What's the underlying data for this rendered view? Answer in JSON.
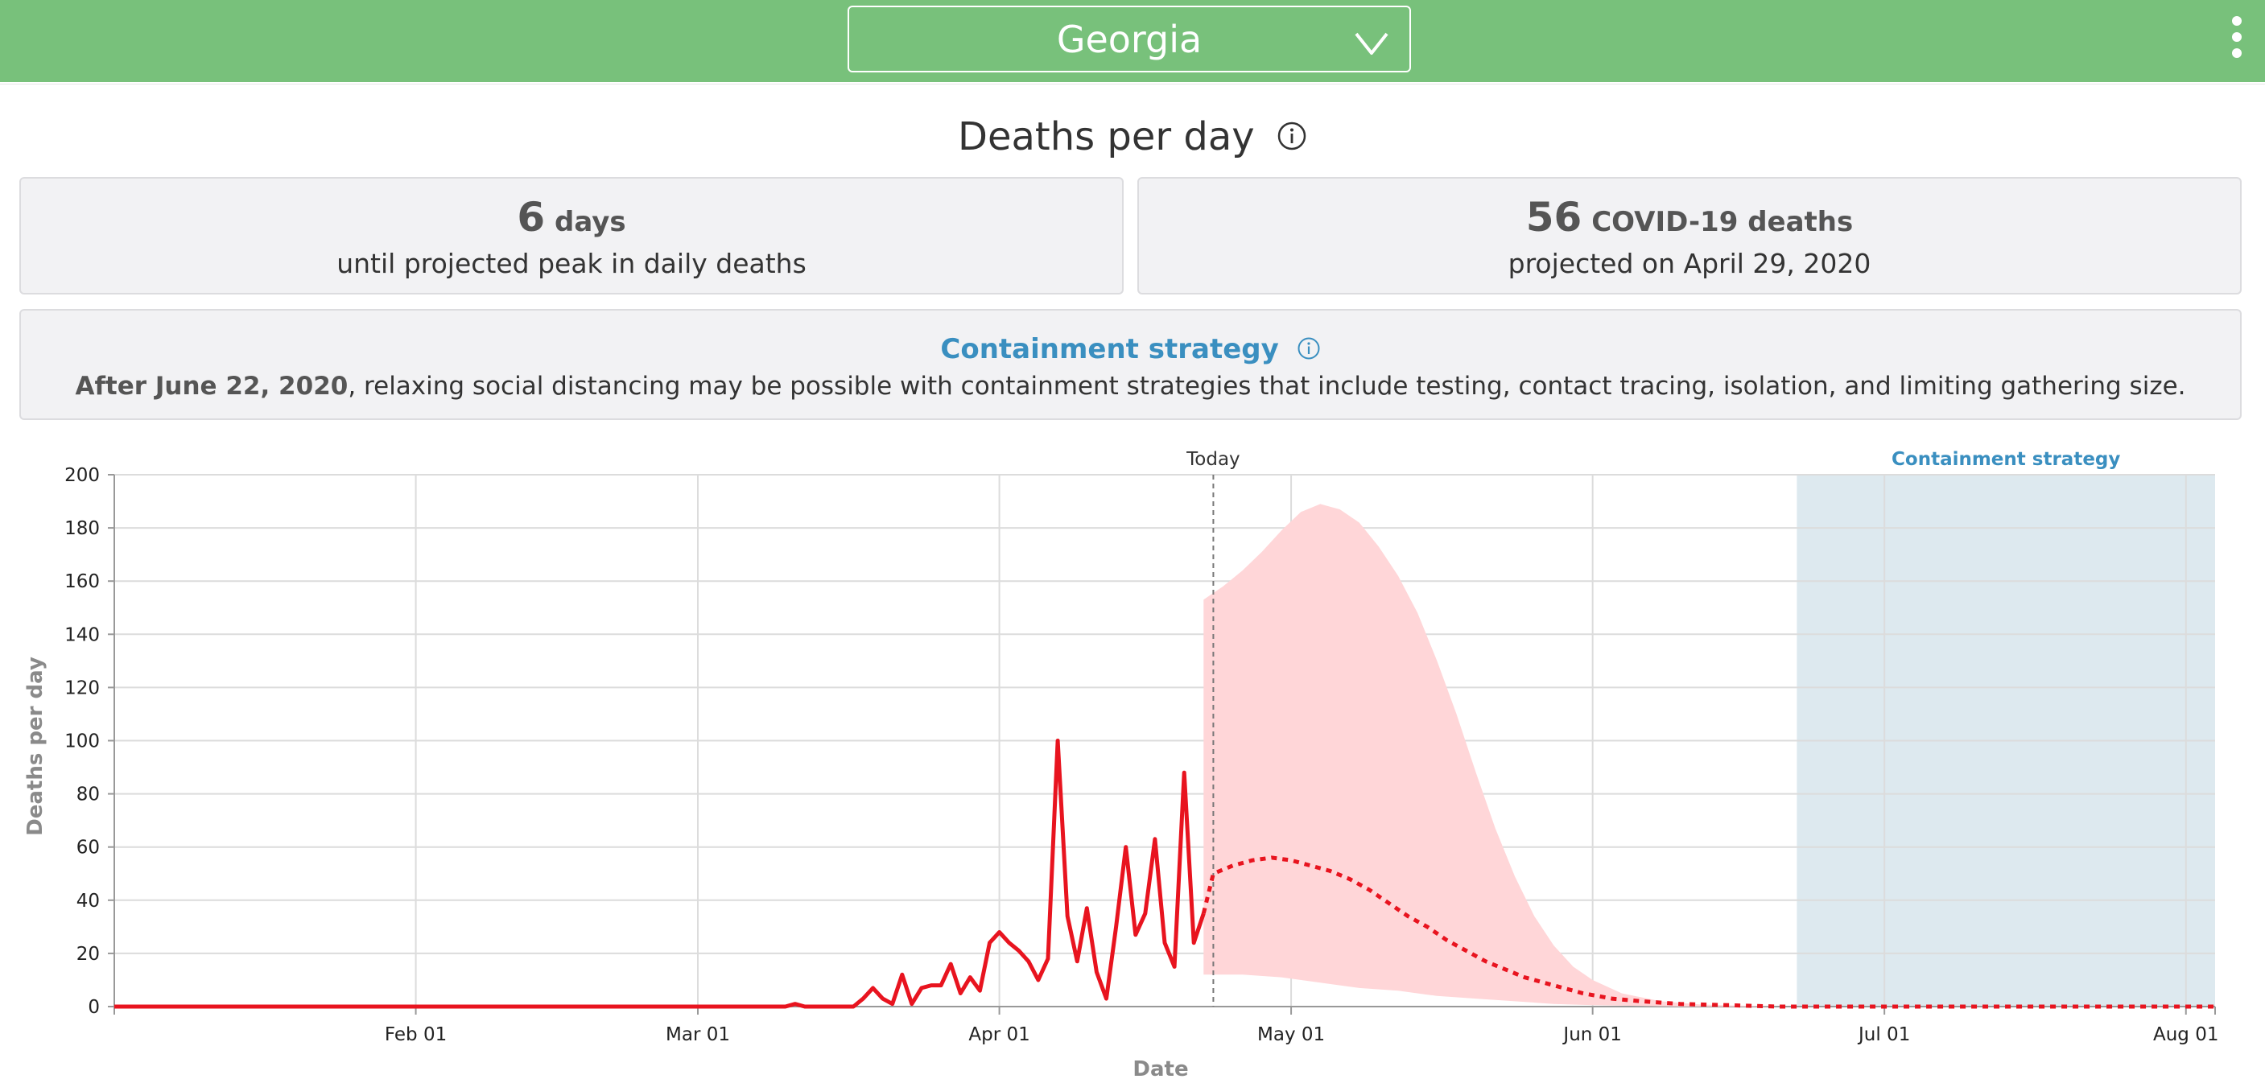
{
  "header": {
    "state": "Georgia",
    "accent_color": "#78c17b",
    "dropdown_icon": "chevron-down-icon",
    "menu_icon": "more-vertical-icon"
  },
  "page": {
    "title": "Deaths per day",
    "info_icon": "info-icon"
  },
  "stats": {
    "peak": {
      "value": "6",
      "unit": "days",
      "caption": "until projected peak in daily deaths"
    },
    "deaths": {
      "value": "56",
      "unit": "COVID-19 deaths",
      "caption": "projected on April 29, 2020"
    }
  },
  "strategy_card": {
    "heading": "Containment strategy",
    "date": "After June 22, 2020",
    "text": ", relaxing social distancing may be possible with containment strategies that include testing, contact tracing, isolation, and limiting gathering size."
  },
  "chart_data": {
    "type": "line",
    "xlabel": "Date",
    "ylabel": "Deaths per day",
    "ylim": [
      0,
      200
    ],
    "yticks": [
      0,
      20,
      40,
      60,
      80,
      100,
      120,
      140,
      160,
      180,
      200
    ],
    "xlim": [
      "2020-01-01",
      "2020-08-04"
    ],
    "xticks": [
      {
        "date": "2020-02-01",
        "label": "Feb 01"
      },
      {
        "date": "2020-03-01",
        "label": "Mar 01"
      },
      {
        "date": "2020-04-01",
        "label": "Apr 01"
      },
      {
        "date": "2020-05-01",
        "label": "May 01"
      },
      {
        "date": "2020-06-01",
        "label": "Jun 01"
      },
      {
        "date": "2020-07-01",
        "label": "Jul 01"
      },
      {
        "date": "2020-08-01",
        "label": "Aug 01"
      }
    ],
    "grid": true,
    "today": {
      "date": "2020-04-23",
      "label": "Today"
    },
    "containment_region": {
      "start": "2020-06-22",
      "end": "2020-08-04",
      "label": "Containment strategy",
      "color": "#dde9ef",
      "label_color": "#3a8fc0"
    },
    "series": [
      {
        "kind": "observed",
        "color": "#e8141f",
        "points": [
          [
            "2020-01-01",
            0
          ],
          [
            "2020-03-10",
            0
          ],
          [
            "2020-03-11",
            1
          ],
          [
            "2020-03-12",
            0
          ],
          [
            "2020-03-15",
            0
          ],
          [
            "2020-03-17",
            0
          ],
          [
            "2020-03-18",
            3
          ],
          [
            "2020-03-19",
            7
          ],
          [
            "2020-03-20",
            3
          ],
          [
            "2020-03-21",
            1
          ],
          [
            "2020-03-22",
            12
          ],
          [
            "2020-03-23",
            1
          ],
          [
            "2020-03-24",
            7
          ],
          [
            "2020-03-25",
            8
          ],
          [
            "2020-03-26",
            8
          ],
          [
            "2020-03-27",
            16
          ],
          [
            "2020-03-28",
            5
          ],
          [
            "2020-03-29",
            11
          ],
          [
            "2020-03-30",
            6
          ],
          [
            "2020-03-31",
            24
          ],
          [
            "2020-04-01",
            28
          ],
          [
            "2020-04-02",
            24
          ],
          [
            "2020-04-03",
            21
          ],
          [
            "2020-04-04",
            17
          ],
          [
            "2020-04-05",
            10
          ],
          [
            "2020-04-06",
            18
          ],
          [
            "2020-04-07",
            100
          ],
          [
            "2020-04-08",
            34
          ],
          [
            "2020-04-09",
            17
          ],
          [
            "2020-04-10",
            37
          ],
          [
            "2020-04-11",
            13
          ],
          [
            "2020-04-12",
            3
          ],
          [
            "2020-04-13",
            30
          ],
          [
            "2020-04-14",
            60
          ],
          [
            "2020-04-15",
            27
          ],
          [
            "2020-04-16",
            35
          ],
          [
            "2020-04-17",
            63
          ],
          [
            "2020-04-18",
            24
          ],
          [
            "2020-04-19",
            15
          ],
          [
            "2020-04-20",
            88
          ],
          [
            "2020-04-21",
            24
          ],
          [
            "2020-04-22",
            35
          ]
        ]
      },
      {
        "kind": "projected",
        "color": "#e8141f",
        "points": [
          [
            "2020-04-22",
            35
          ],
          [
            "2020-04-23",
            50
          ],
          [
            "2020-04-25",
            53
          ],
          [
            "2020-04-27",
            55
          ],
          [
            "2020-04-29",
            56
          ],
          [
            "2020-05-01",
            55
          ],
          [
            "2020-05-03",
            53
          ],
          [
            "2020-05-05",
            51
          ],
          [
            "2020-05-07",
            48
          ],
          [
            "2020-05-09",
            44
          ],
          [
            "2020-05-11",
            39
          ],
          [
            "2020-05-13",
            34
          ],
          [
            "2020-05-15",
            30
          ],
          [
            "2020-05-17",
            25
          ],
          [
            "2020-05-19",
            21
          ],
          [
            "2020-05-21",
            17
          ],
          [
            "2020-05-23",
            14
          ],
          [
            "2020-05-25",
            11
          ],
          [
            "2020-05-27",
            9
          ],
          [
            "2020-05-29",
            7
          ],
          [
            "2020-05-31",
            5
          ],
          [
            "2020-06-03",
            3
          ],
          [
            "2020-06-06",
            2
          ],
          [
            "2020-06-10",
            1
          ],
          [
            "2020-06-15",
            0.5
          ],
          [
            "2020-06-20",
            0
          ],
          [
            "2020-08-04",
            0
          ]
        ]
      },
      {
        "kind": "uncertainty",
        "color": "#ffd6d8",
        "upper": [
          [
            "2020-04-22",
            153
          ],
          [
            "2020-04-24",
            158
          ],
          [
            "2020-04-26",
            164
          ],
          [
            "2020-04-28",
            171
          ],
          [
            "2020-04-30",
            179
          ],
          [
            "2020-05-02",
            186
          ],
          [
            "2020-05-04",
            189
          ],
          [
            "2020-05-06",
            187
          ],
          [
            "2020-05-08",
            182
          ],
          [
            "2020-05-10",
            173
          ],
          [
            "2020-05-12",
            162
          ],
          [
            "2020-05-14",
            148
          ],
          [
            "2020-05-16",
            130
          ],
          [
            "2020-05-18",
            110
          ],
          [
            "2020-05-20",
            88
          ],
          [
            "2020-05-22",
            67
          ],
          [
            "2020-05-24",
            49
          ],
          [
            "2020-05-26",
            34
          ],
          [
            "2020-05-28",
            23
          ],
          [
            "2020-05-30",
            15
          ],
          [
            "2020-06-01",
            10
          ],
          [
            "2020-06-04",
            5
          ],
          [
            "2020-06-08",
            2
          ],
          [
            "2020-06-12",
            0.8
          ],
          [
            "2020-06-20",
            0
          ]
        ],
        "lower": [
          [
            "2020-04-22",
            12
          ],
          [
            "2020-04-26",
            12
          ],
          [
            "2020-04-30",
            11
          ],
          [
            "2020-05-04",
            9
          ],
          [
            "2020-05-08",
            7
          ],
          [
            "2020-05-12",
            6
          ],
          [
            "2020-05-16",
            4
          ],
          [
            "2020-05-20",
            3
          ],
          [
            "2020-05-24",
            2
          ],
          [
            "2020-05-28",
            1
          ],
          [
            "2020-06-01",
            0.5
          ],
          [
            "2020-06-10",
            0
          ],
          [
            "2020-06-20",
            0
          ]
        ]
      }
    ]
  }
}
